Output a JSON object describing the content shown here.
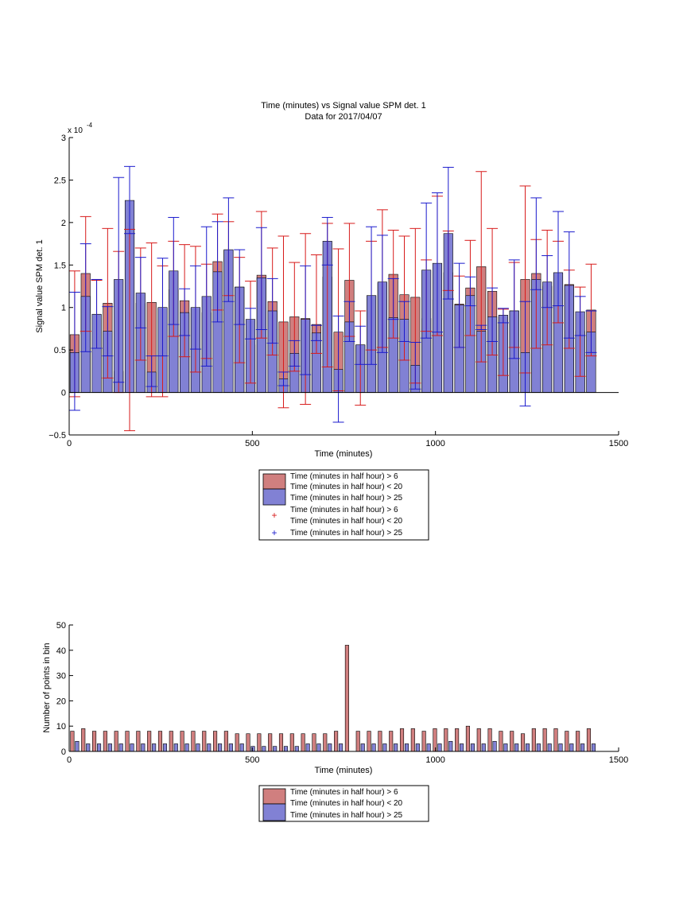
{
  "colors": {
    "bar_a": "#d07f7f",
    "bar_b": "#8181d4",
    "err_a": "#d71a1a",
    "err_b": "#1a1acd",
    "axis": "#000000"
  },
  "legend_labels": {
    "a1": "Time (minutes in half hour) > 6",
    "a2": "Time (minutes in half hour) < 20",
    "b": "Time (minutes in half hour) > 25",
    "c1": "Time (minutes in half hour) > 6",
    "c2": "Time (minutes in half hour) < 20",
    "d": "Time (minutes in half hour) > 25"
  },
  "legend2_labels": {
    "a1": "Time (minutes in half hour) > 6",
    "a2": "Time (minutes in half hour) < 20",
    "b": "Time (minutes in half hour) > 25"
  },
  "chart_data": [
    {
      "type": "bar",
      "title": "Time (minutes) vs Signal value SPM det. 1",
      "subtitle": "Data for 2017/04/07",
      "xlabel": "Time (minutes)",
      "ylabel": "Signal value SPM det. 1",
      "y_exponent_label": "x 10",
      "y_exponent_power": "-4",
      "xlim": [
        0,
        1500
      ],
      "ylim": [
        -0.5,
        3
      ],
      "x_ticks": [
        0,
        500,
        1000,
        1500
      ],
      "y_ticks": [
        -0.5,
        0,
        0.5,
        1,
        1.5,
        2,
        2.5,
        3
      ],
      "y_tick_labels": [
        "−0.5",
        "0",
        "0.5",
        "1",
        "1.5",
        "2",
        "2.5",
        "3"
      ],
      "x": [
        15,
        45,
        75,
        105,
        135,
        165,
        195,
        225,
        255,
        285,
        315,
        345,
        375,
        405,
        435,
        465,
        495,
        525,
        555,
        585,
        615,
        645,
        675,
        705,
        735,
        765,
        795,
        825,
        855,
        885,
        915,
        945,
        975,
        1005,
        1035,
        1065,
        1095,
        1125,
        1155,
        1185,
        1215,
        1245,
        1275,
        1305,
        1335,
        1365,
        1395,
        1425
      ],
      "series": [
        {
          "name": "Time (minutes in half hour) > 6",
          "values": [
            0.68,
            1.4,
            0.92,
            1.05,
            0.25,
            1.91,
            1.05,
            1.06,
            0.99,
            1.21,
            1.08,
            0.99,
            0.94,
            1.54,
            1.67,
            1.24,
            0.56,
            1.38,
            1.07,
            0.83,
            0.89,
            0.87,
            0.8,
            1.36,
            0.71,
            1.32,
            0.56,
            1.14,
            1.29,
            1.39,
            1.15,
            1.12,
            0.87,
            1.09,
            1.41,
            1.04,
            1.23,
            1.48,
            1.19,
            0.89,
            0.96,
            1.33,
            1.4,
            1.25,
            1.4,
            1.27,
            0.72,
            0.97
          ],
          "err_low": [
            -0.05,
            0.72,
            0.52,
            0.17,
            0.0,
            -0.45,
            0.38,
            -0.05,
            -0.05,
            0.66,
            0.42,
            0.24,
            0.4,
            0.97,
            1.14,
            0.35,
            0.11,
            0.64,
            0.44,
            -0.18,
            0.25,
            -0.14,
            0.46,
            0.3,
            0.02,
            0.66,
            -0.15,
            0.5,
            0.53,
            0.64,
            0.38,
            0.11,
            0.72,
            0.67,
            1.2,
            0.53,
            0.67,
            0.36,
            0.44,
            0.2,
            0.53,
            0.23,
            0.52,
            0.56,
            0.82,
            0.52,
            0.19,
            0.43
          ],
          "err_high": [
            1.43,
            2.07,
            1.32,
            1.93,
            1.66,
            1.92,
            1.7,
            1.76,
            1.49,
            1.78,
            1.74,
            1.72,
            1.51,
            2.1,
            2.01,
            1.59,
            1.31,
            2.13,
            1.7,
            1.84,
            1.53,
            1.87,
            1.62,
            1.99,
            1.69,
            1.99,
            0.96,
            1.78,
            2.15,
            1.91,
            1.84,
            1.93,
            1.56,
            2.31,
            1.9,
            1.37,
            1.79,
            2.6,
            1.93,
            0.98,
            1.53,
            2.43,
            1.8,
            1.91,
            1.78,
            1.44,
            1.24,
            1.51
          ]
        },
        {
          "name": "Time (minutes in half hour) > 25",
          "values": [
            0.47,
            1.13,
            0.92,
            0.72,
            1.33,
            2.26,
            1.17,
            0.24,
            1.0,
            1.43,
            0.94,
            1.0,
            1.13,
            1.42,
            1.68,
            1.24,
            0.86,
            1.35,
            0.96,
            0.16,
            0.46,
            0.86,
            0.7,
            1.78,
            0.27,
            0.83,
            0.56,
            1.14,
            1.3,
            0.88,
            0.86,
            0.32,
            1.44,
            1.52,
            1.87,
            1.03,
            1.14,
            0.72,
            0.89,
            0.91,
            0.96,
            0.47,
            1.33,
            1.3,
            1.41,
            1.26,
            0.95,
            0.71
          ],
          "err_low": [
            -0.21,
            0.48,
            0.52,
            0.43,
            0.12,
            1.87,
            0.76,
            0.07,
            0.43,
            0.8,
            0.67,
            0.51,
            0.31,
            0.83,
            1.07,
            0.8,
            0.63,
            0.74,
            0.58,
            0.08,
            0.31,
            0.21,
            0.61,
            1.5,
            -0.35,
            0.6,
            0.33,
            0.33,
            0.47,
            0.86,
            0.6,
            0.04,
            0.64,
            0.71,
            1.1,
            0.53,
            1.02,
            0.74,
            0.6,
            0.82,
            0.4,
            -0.16,
            1.21,
            1.0,
            1.02,
            0.64,
            0.67,
            0.47
          ],
          "err_high": [
            1.18,
            1.75,
            1.33,
            1.01,
            2.53,
            2.66,
            1.59,
            0.43,
            1.58,
            2.06,
            1.22,
            1.49,
            1.95,
            2.01,
            2.29,
            1.68,
            0.99,
            1.94,
            1.34,
            0.24,
            0.61,
            1.49,
            0.79,
            2.06,
            0.9,
            1.07,
            0.78,
            1.95,
            1.85,
            1.34,
            1.07,
            0.59,
            2.23,
            2.35,
            2.65,
            1.52,
            1.36,
            0.79,
            1.23,
            0.99,
            1.56,
            1.07,
            2.29,
            1.61,
            2.13,
            1.89,
            1.13,
            0.96
          ]
        }
      ],
      "legend_position": "below"
    },
    {
      "type": "bar",
      "xlabel": "Time (minutes)",
      "ylabel": "Number of points in bin",
      "xlim": [
        0,
        1500
      ],
      "ylim": [
        0,
        50
      ],
      "x_ticks": [
        0,
        500,
        1000,
        1500
      ],
      "y_ticks": [
        0,
        10,
        20,
        30,
        40,
        50
      ],
      "x": [
        15,
        45,
        75,
        105,
        135,
        165,
        195,
        225,
        255,
        285,
        315,
        345,
        375,
        405,
        435,
        465,
        495,
        525,
        555,
        585,
        615,
        645,
        675,
        705,
        735,
        765,
        795,
        825,
        855,
        885,
        915,
        945,
        975,
        1005,
        1035,
        1065,
        1095,
        1125,
        1155,
        1185,
        1215,
        1245,
        1275,
        1305,
        1335,
        1365,
        1395,
        1425
      ],
      "series": [
        {
          "name": "Time (minutes in half hour) > 6",
          "values": [
            8,
            9,
            8,
            8,
            8,
            8,
            8,
            8,
            8,
            8,
            8,
            8,
            8,
            8,
            8,
            7,
            7,
            7,
            7,
            7,
            7,
            7,
            7,
            7,
            8,
            42,
            8,
            8,
            8,
            8,
            9,
            9,
            8,
            9,
            9,
            9,
            10,
            9,
            9,
            8,
            8,
            7,
            9,
            9,
            9,
            8,
            8,
            9
          ]
        },
        {
          "name": "Time (minutes in half hour) > 25",
          "values": [
            4,
            3,
            3,
            3,
            3,
            3,
            3,
            3,
            3,
            3,
            3,
            3,
            3,
            3,
            3,
            3,
            2,
            2,
            2,
            2,
            2,
            3,
            3,
            3,
            3,
            0,
            3,
            3,
            3,
            3,
            3,
            3,
            3,
            3,
            4,
            3,
            3,
            3,
            4,
            3,
            3,
            3,
            3,
            3,
            3,
            3,
            3,
            3
          ]
        }
      ],
      "legend_position": "below"
    }
  ]
}
